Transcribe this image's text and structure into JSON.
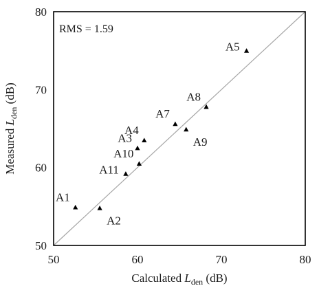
{
  "chart_data": {
    "type": "scatter",
    "xlabel": {
      "prefix": "Calculated ",
      "var": "L",
      "sub": "den",
      "suffix": " (dB)"
    },
    "ylabel": {
      "prefix": "Measured ",
      "var": "L",
      "sub": "den",
      "suffix": " (dB)"
    },
    "xlim": [
      50,
      80
    ],
    "ylim": [
      50,
      80
    ],
    "xticks": [
      50,
      60,
      70,
      80
    ],
    "yticks": [
      50,
      60,
      70,
      80
    ],
    "grid": false,
    "reference_line": {
      "from": [
        50,
        50
      ],
      "to": [
        80,
        80
      ]
    },
    "annotation": "RMS = 1.59",
    "points": [
      {
        "label": "A1",
        "x": 52.6,
        "y": 54.9,
        "label_pos": "nw"
      },
      {
        "label": "A2",
        "x": 55.5,
        "y": 54.8,
        "label_pos": "se"
      },
      {
        "label": "A3",
        "x": 60.0,
        "y": 62.5,
        "label_pos": "nw"
      },
      {
        "label": "A4",
        "x": 60.8,
        "y": 63.5,
        "label_pos": "nw"
      },
      {
        "label": "A5",
        "x": 73.0,
        "y": 75.0,
        "label_pos": "w"
      },
      {
        "label": "A7",
        "x": 64.5,
        "y": 65.6,
        "label_pos": "nw"
      },
      {
        "label": "A8",
        "x": 68.2,
        "y": 67.8,
        "label_pos": "nw"
      },
      {
        "label": "A9",
        "x": 65.8,
        "y": 64.9,
        "label_pos": "se"
      },
      {
        "label": "A10",
        "x": 60.2,
        "y": 60.5,
        "label_pos": "nw"
      },
      {
        "label": "A11",
        "x": 58.6,
        "y": 59.2,
        "label_pos": "w"
      }
    ],
    "marker_color": "#000000",
    "line_color": "#a6a6a6"
  }
}
